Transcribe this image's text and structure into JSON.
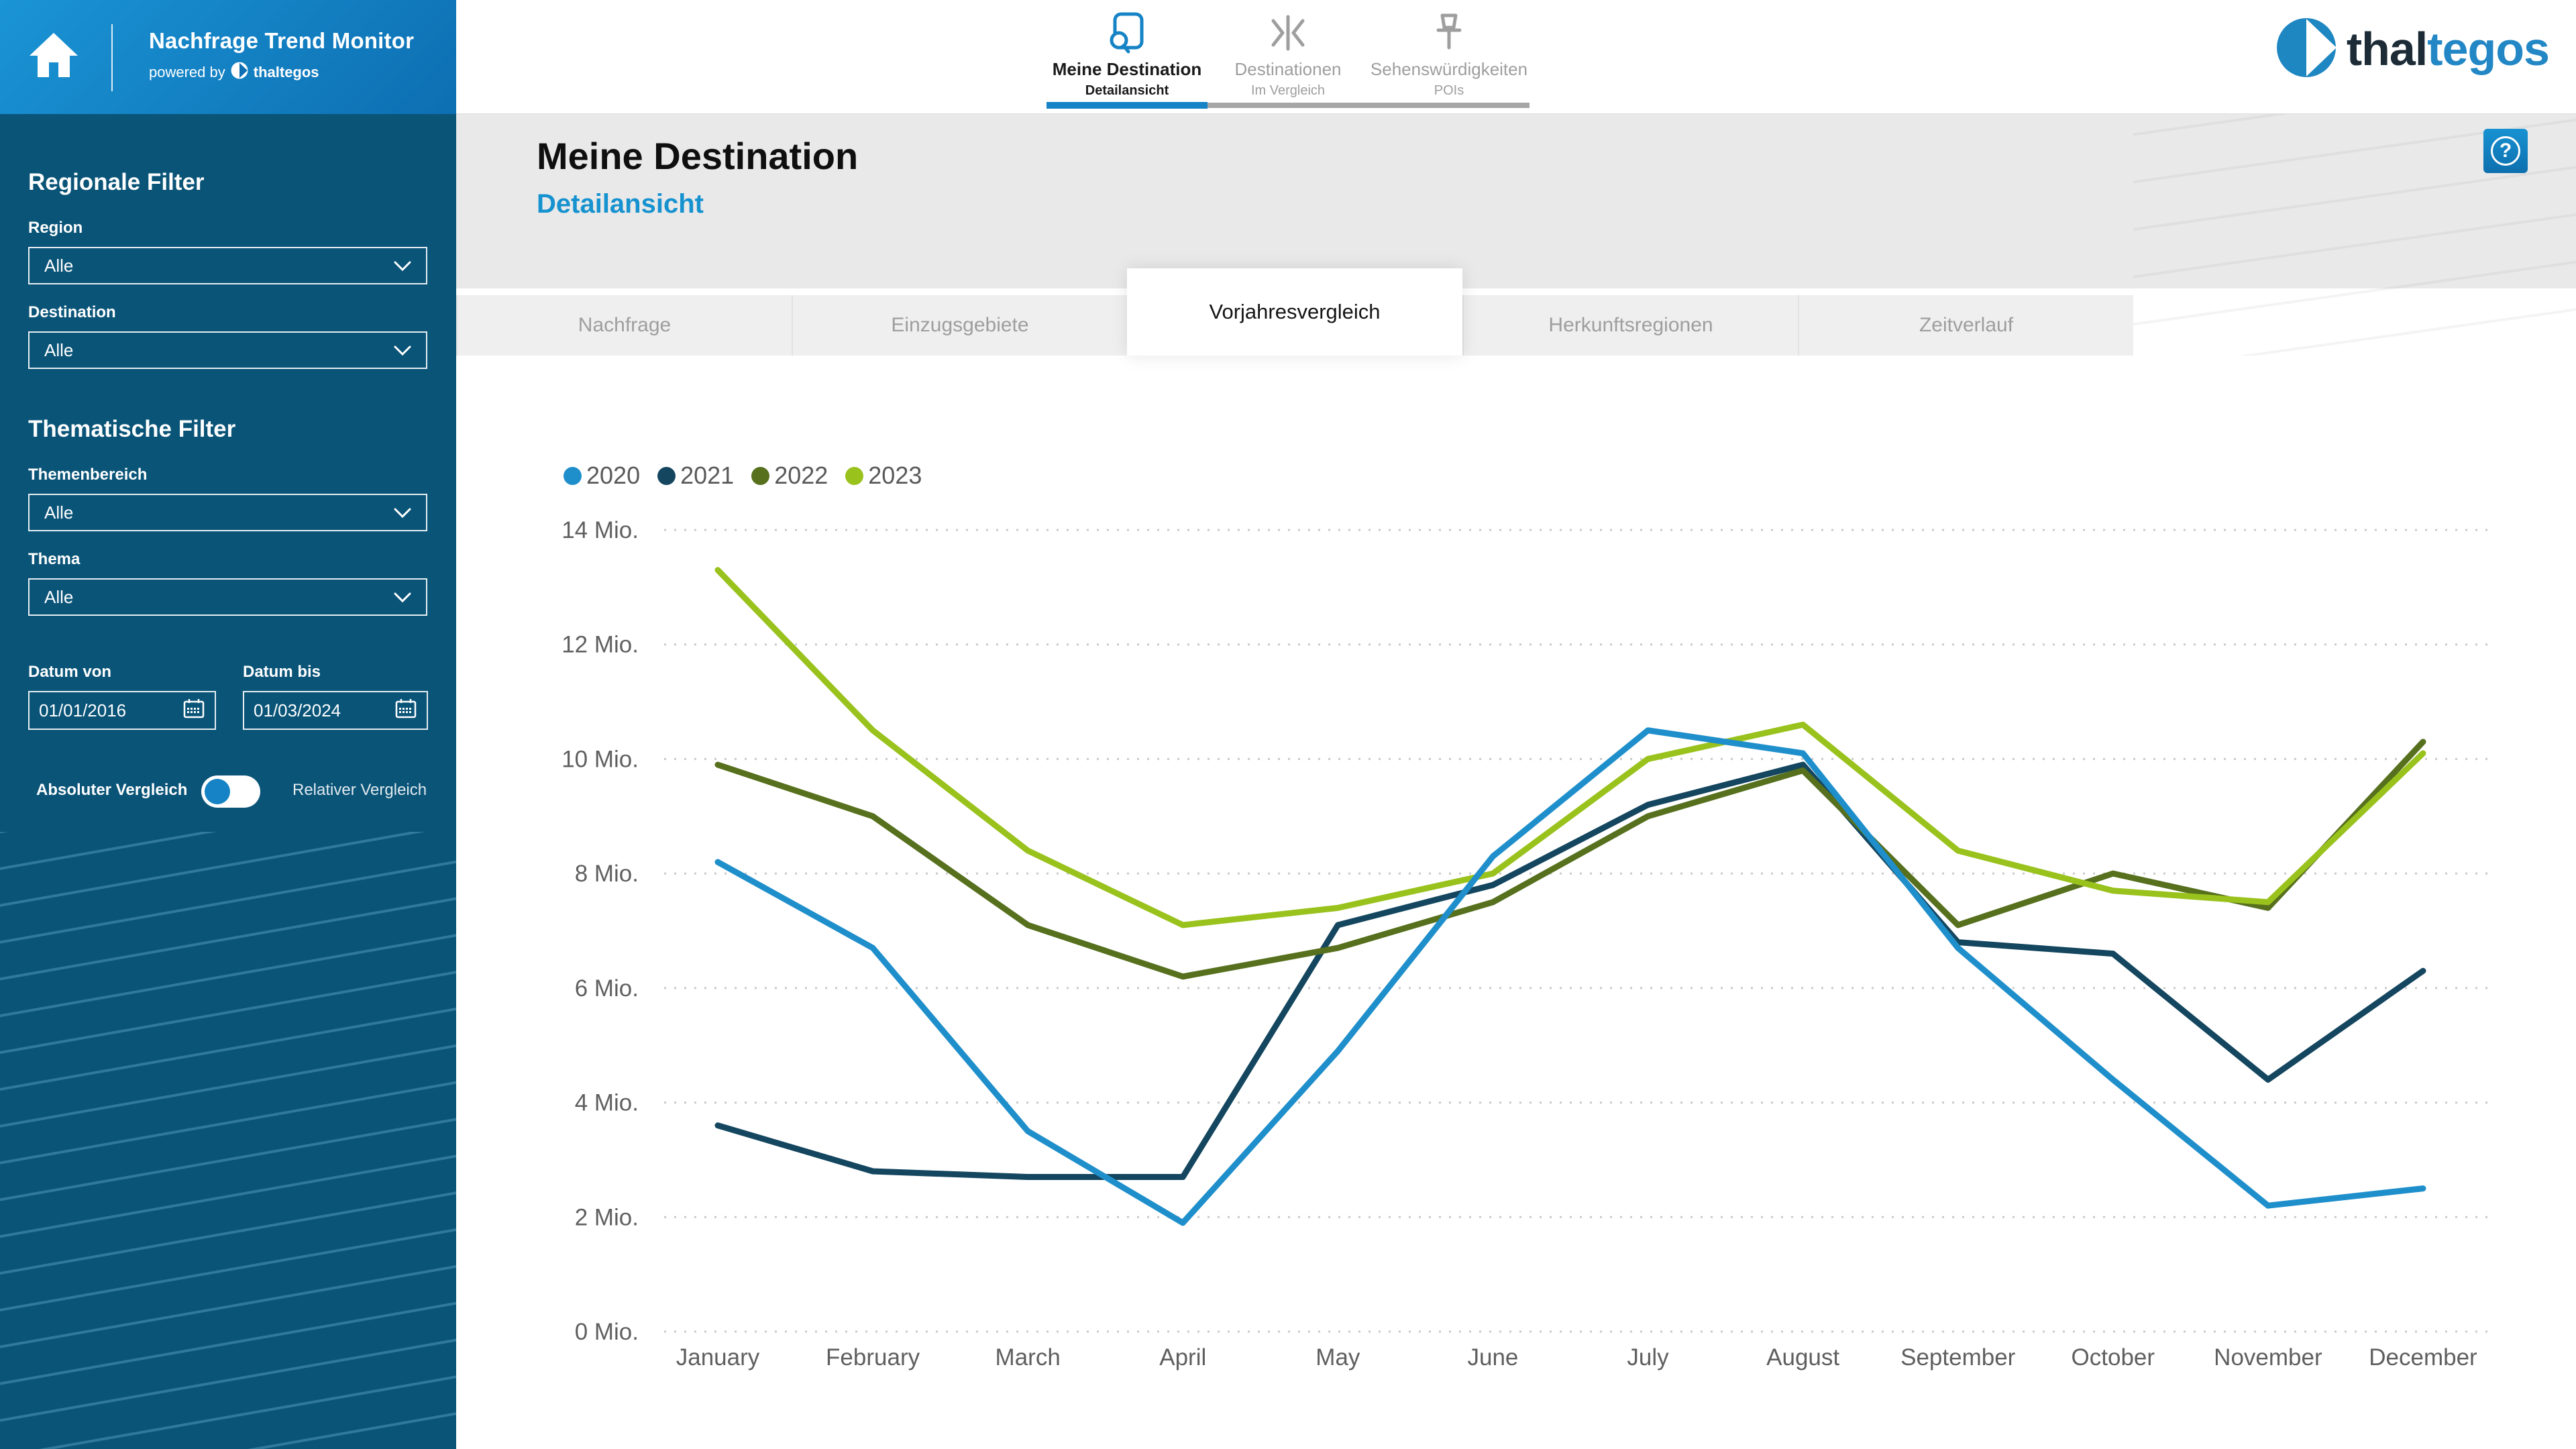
{
  "sidebar": {
    "app_title": "Nachfrage Trend Monitor",
    "powered_by_prefix": "powered by",
    "powered_by_brand": "thaltegos",
    "regional_heading": "Regionale Filter",
    "region_label": "Region",
    "region_value": "Alle",
    "destination_label": "Destination",
    "destination_value": "Alle",
    "thematic_heading": "Thematische Filter",
    "themenbereich_label": "Themenbereich",
    "themenbereich_value": "Alle",
    "thema_label": "Thema",
    "thema_value": "Alle",
    "date_from_label": "Datum von",
    "date_from_value": "01/01/2016",
    "date_to_label": "Datum bis",
    "date_to_value": "01/03/2024",
    "toggle_left_label": "Absoluter Vergleich",
    "toggle_right_label": "Relativer Vergleich",
    "toggle_state": "left"
  },
  "header": {
    "nav": [
      {
        "label": "Meine Destination",
        "sublabel": "Detailansicht",
        "icon": "document-search-icon",
        "active": true
      },
      {
        "label": "Destinationen",
        "sublabel": "Im Vergleich",
        "icon": "compare-icon",
        "active": false
      },
      {
        "label": "Sehenswürdigkeiten",
        "sublabel": "POIs",
        "icon": "pushpin-icon",
        "active": false
      }
    ],
    "brand_part1": "thal",
    "brand_part2": "tegos"
  },
  "main": {
    "title": "Meine Destination",
    "subtitle": "Detailansicht",
    "help_label": "?",
    "tabs": [
      {
        "label": "Nachfrage",
        "active": false
      },
      {
        "label": "Einzugsgebiete",
        "active": false
      },
      {
        "label": "Vorjahresvergleich",
        "active": true
      },
      {
        "label": "Herkunftsregionen",
        "active": false
      },
      {
        "label": "Zeitverlauf",
        "active": false
      }
    ]
  },
  "colors": {
    "accent_blue": "#1583c5",
    "sidebar_bg": "#0a5478",
    "subtitle_blue": "#1592cf",
    "gridline": "#c9c9c9",
    "axis_text": "#5f5f5f",
    "legend_text": "#595959"
  },
  "chart_data": {
    "type": "line",
    "title": "",
    "xlabel": "",
    "ylabel": "",
    "unit": "Mio.",
    "ylim": [
      0,
      14
    ],
    "ytick_step": 2,
    "ytick_suffix": " Mio.",
    "grid": "horizontal-dotted",
    "legend_position": "top-left",
    "categories": [
      "January",
      "February",
      "March",
      "April",
      "May",
      "June",
      "July",
      "August",
      "September",
      "October",
      "November",
      "December"
    ],
    "series": [
      {
        "name": "2020",
        "color": "#1f8fcb",
        "values": [
          8.2,
          6.7,
          3.5,
          1.9,
          4.9,
          8.3,
          10.5,
          10.1,
          6.7,
          4.4,
          2.2,
          2.5
        ]
      },
      {
        "name": "2021",
        "color": "#14465f",
        "values": [
          3.6,
          2.8,
          2.7,
          2.7,
          7.1,
          7.8,
          9.2,
          9.9,
          6.8,
          6.6,
          4.4,
          6.3
        ]
      },
      {
        "name": "2022",
        "color": "#56701d",
        "values": [
          9.9,
          9.0,
          7.1,
          6.2,
          6.7,
          7.5,
          9.0,
          9.8,
          7.1,
          8.0,
          7.4,
          10.3
        ]
      },
      {
        "name": "2023",
        "color": "#99c21c",
        "values": [
          13.3,
          10.5,
          8.4,
          7.1,
          7.4,
          8.0,
          10.0,
          10.6,
          8.4,
          7.7,
          7.5,
          10.1
        ]
      }
    ]
  }
}
